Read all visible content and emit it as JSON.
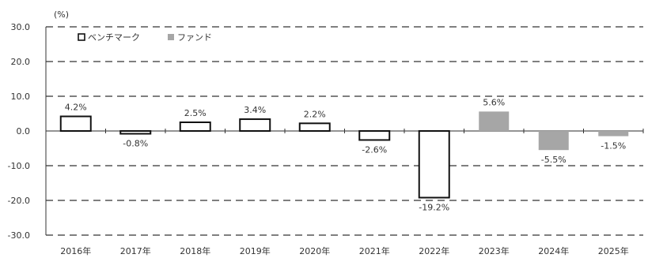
{
  "chart_data": {
    "type": "bar",
    "unit_label": "(%)",
    "categories": [
      "2016年",
      "2017年",
      "2018年",
      "2019年",
      "2020年",
      "2021年",
      "2022年",
      "2023年",
      "2024年",
      "2025年"
    ],
    "series": [
      {
        "name": "ベンチマーク",
        "values": [
          4.2,
          -0.8,
          2.5,
          3.4,
          2.2,
          -2.6,
          -19.2,
          null,
          null,
          null
        ]
      },
      {
        "name": "ファンド",
        "values": [
          null,
          null,
          null,
          null,
          null,
          null,
          null,
          5.6,
          -5.5,
          -1.5
        ]
      }
    ],
    "data_labels": [
      "4.2%",
      "-0.8%",
      "2.5%",
      "3.4%",
      "2.2%",
      "-2.6%",
      "-19.2%",
      "5.6%",
      "-5.5%",
      "-1.5%"
    ],
    "ylim": [
      -30,
      30
    ],
    "yticks": [
      30,
      20,
      10,
      0,
      -10,
      -20,
      -30
    ],
    "ytick_labels": [
      "30.0",
      "20.0",
      "10.0",
      "0.0",
      "-10.0",
      "-20.0",
      "-30.0"
    ],
    "grid": true,
    "legend_position": "top-left",
    "colors": {
      "benchmark_fill": "#ffffff",
      "benchmark_stroke": "#111111",
      "fund_fill": "#a6a6a6",
      "grid": "#555555",
      "axis": "#333333"
    }
  }
}
